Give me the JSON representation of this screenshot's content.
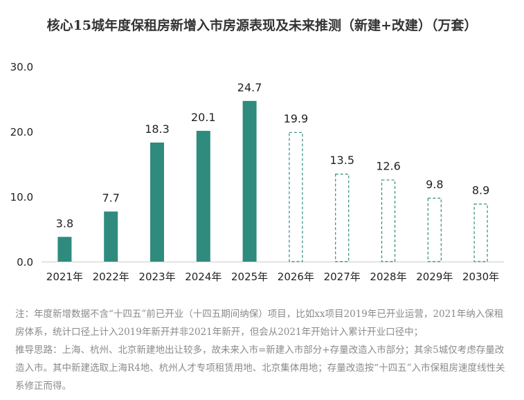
{
  "title": "核心15城年度保租房新增入市房源表现及未来推测（新建+改建）（万套）",
  "colors": {
    "bar": "#2e8b7d",
    "axis": "#cccccc",
    "note": "#8a8a8a"
  },
  "chart_data": {
    "type": "bar",
    "title": "核心15城年度保租房新增入市房源表现及未来推测（新建+改建）（万套）",
    "categories": [
      "2021年",
      "2022年",
      "2023年",
      "2024年",
      "2025年",
      "2026年",
      "2027年",
      "2028年",
      "2029年",
      "2030年"
    ],
    "values": [
      3.8,
      7.7,
      18.3,
      20.1,
      24.7,
      19.9,
      13.5,
      12.6,
      9.8,
      8.9
    ],
    "value_labels": [
      "3.8",
      "7.7",
      "18.3",
      "20.1",
      "24.7",
      "19.9",
      "13.5",
      "12.6",
      "9.8",
      "8.9"
    ],
    "bar_style": [
      "solid",
      "solid",
      "solid",
      "solid",
      "solid",
      "dashed",
      "dashed",
      "dashed",
      "dashed",
      "dashed"
    ],
    "ylim": [
      0,
      30
    ],
    "yticks": [
      0,
      10,
      20,
      30
    ],
    "ytick_labels": [
      "0.0",
      "10.0",
      "20.0",
      "30.0"
    ],
    "grid": false,
    "xlabel": "",
    "ylabel": ""
  },
  "notes": [
    "注：年度新增数据不含“十四五”前已开业（十四五期间纳保）项目，比如xx项目2019年已开业运营，2021年纳入保租房体系，统计口径上计入2019年新开并非2021年新开，但会从2021年开始计入累计开业口径中；",
    "推导思路：上海、杭州、北京新建地出让较多，故未来入市=新建入市部分+存量改造入市部分；其余5城仅考虑存量改造入市。其中新建选取上海R4地、杭州人才专项租赁用地、北京集体用地；存量改造按“十四五”入市保租房速度线性关系修正而得。"
  ]
}
